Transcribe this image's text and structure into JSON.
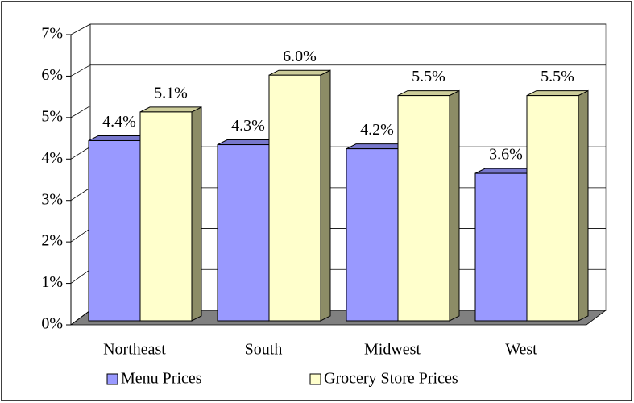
{
  "chart_data": {
    "type": "bar3d",
    "categories": [
      "Northeast",
      "South",
      "Midwest",
      "West"
    ],
    "series": [
      {
        "name": "Menu Prices",
        "color": "#9999ff",
        "values": [
          4.4,
          4.3,
          4.2,
          3.6
        ],
        "value_labels": [
          "4.4%",
          "4.3%",
          "4.2%",
          "3.6%"
        ]
      },
      {
        "name": "Grocery Store Prices",
        "color": "#ffffcc",
        "values": [
          5.1,
          6.0,
          5.5,
          5.5
        ],
        "value_labels": [
          "5.1%",
          "6.0%",
          "5.5%",
          "5.5%"
        ]
      }
    ],
    "ylim": [
      0,
      7
    ],
    "yticks": [
      {
        "value": 0,
        "label": "0%"
      },
      {
        "value": 1,
        "label": "1%"
      },
      {
        "value": 2,
        "label": "2%"
      },
      {
        "value": 3,
        "label": "3%"
      },
      {
        "value": 4,
        "label": "4%"
      },
      {
        "value": 5,
        "label": "5%"
      },
      {
        "value": 6,
        "label": "6%"
      },
      {
        "value": 7,
        "label": "7%"
      }
    ],
    "grid": true,
    "legend": "bottom"
  }
}
